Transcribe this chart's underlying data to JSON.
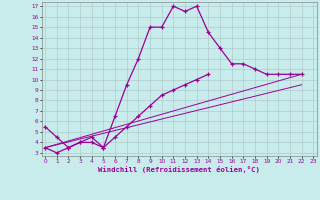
{
  "xlabel": "Windchill (Refroidissement éolien,°C)",
  "background_color": "#c8ecec",
  "line_color": "#990099",
  "grid_color": "#b0cccc",
  "series1_x": [
    0,
    1,
    2,
    3,
    4,
    5,
    6,
    7,
    8,
    9,
    10,
    11,
    12,
    13,
    14,
    15,
    16,
    17,
    18,
    19,
    20,
    21,
    22
  ],
  "series1_y": [
    5.5,
    4.5,
    3.5,
    4.0,
    4.5,
    3.5,
    6.5,
    9.5,
    12.0,
    15.0,
    15.0,
    17.0,
    16.5,
    17.0,
    14.5,
    13.0,
    11.5,
    11.5,
    11.0,
    10.5,
    10.5,
    10.5,
    10.5
  ],
  "series2_x": [
    0,
    1,
    2,
    3,
    4,
    5,
    6,
    7,
    8,
    9,
    10,
    11,
    12,
    13,
    14
  ],
  "series2_y": [
    3.5,
    3.0,
    3.5,
    4.0,
    4.0,
    3.5,
    4.5,
    5.5,
    6.5,
    7.5,
    8.5,
    9.0,
    9.5,
    10.0,
    10.5
  ],
  "series3_x": [
    0,
    22
  ],
  "series3_y": [
    3.5,
    10.5
  ],
  "series4_x": [
    0,
    22
  ],
  "series4_y": [
    3.5,
    9.5
  ],
  "xlim": [
    0,
    23
  ],
  "ylim": [
    3,
    17
  ],
  "yticks": [
    3,
    4,
    5,
    6,
    7,
    8,
    9,
    10,
    11,
    12,
    13,
    14,
    15,
    16,
    17
  ],
  "xticks": [
    0,
    1,
    2,
    3,
    4,
    5,
    6,
    7,
    8,
    9,
    10,
    11,
    12,
    13,
    14,
    15,
    16,
    17,
    18,
    19,
    20,
    21,
    22,
    23
  ]
}
